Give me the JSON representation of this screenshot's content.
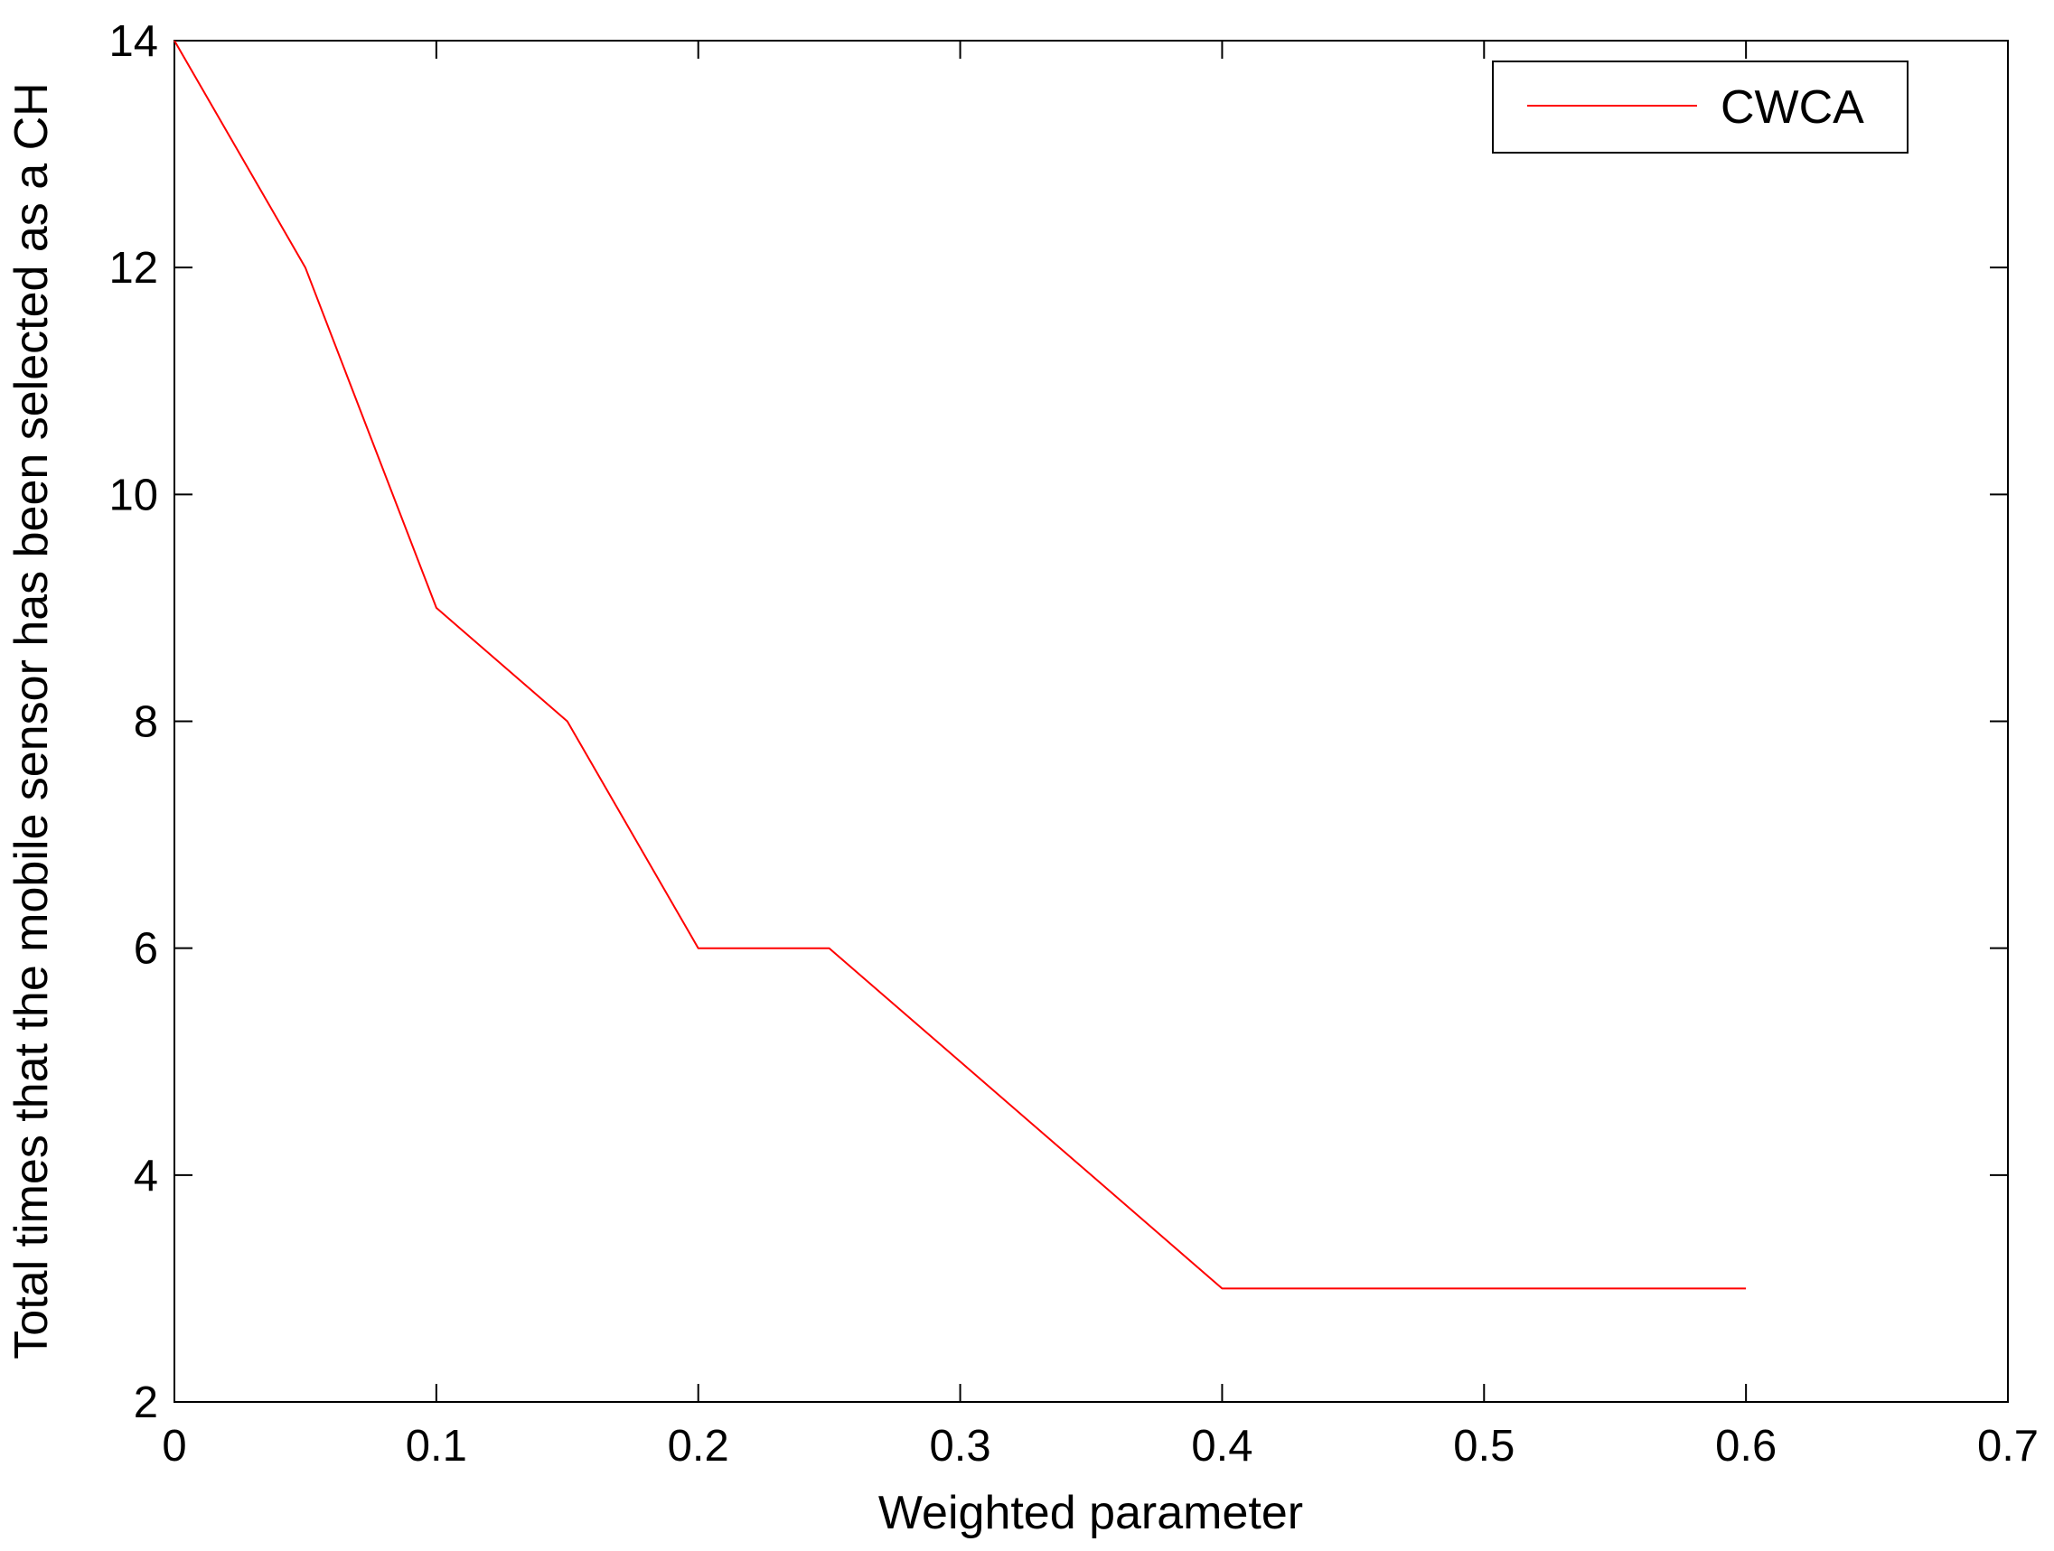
{
  "chart_data": {
    "type": "line",
    "title": "",
    "xlabel": "Weighted parameter",
    "ylabel": "Total times that the mobile sensor has been selected as a CH",
    "xlim": [
      0,
      0.7
    ],
    "ylim": [
      2,
      14
    ],
    "xticks": [
      0,
      0.1,
      0.2,
      0.3,
      0.4,
      0.5,
      0.6,
      0.7
    ],
    "yticks": [
      2,
      4,
      6,
      8,
      10,
      12,
      14
    ],
    "xtick_labels": [
      "0",
      "0.1",
      "0.2",
      "0.3",
      "0.4",
      "0.5",
      "0.6",
      "0.7"
    ],
    "ytick_labels": [
      "2",
      "4",
      "6",
      "8",
      "10",
      "12",
      "14"
    ],
    "grid": false,
    "legend": {
      "placement": "top-right",
      "entries": [
        "CWCA"
      ]
    },
    "series": [
      {
        "name": "CWCA",
        "color": "#ff0000",
        "x": [
          0,
          0.05,
          0.1,
          0.15,
          0.2,
          0.25,
          0.3,
          0.35,
          0.4,
          0.45,
          0.5,
          0.55,
          0.6
        ],
        "y": [
          14,
          12,
          9,
          8,
          6,
          6,
          5,
          4,
          3,
          3,
          3,
          3,
          3
        ]
      }
    ]
  }
}
